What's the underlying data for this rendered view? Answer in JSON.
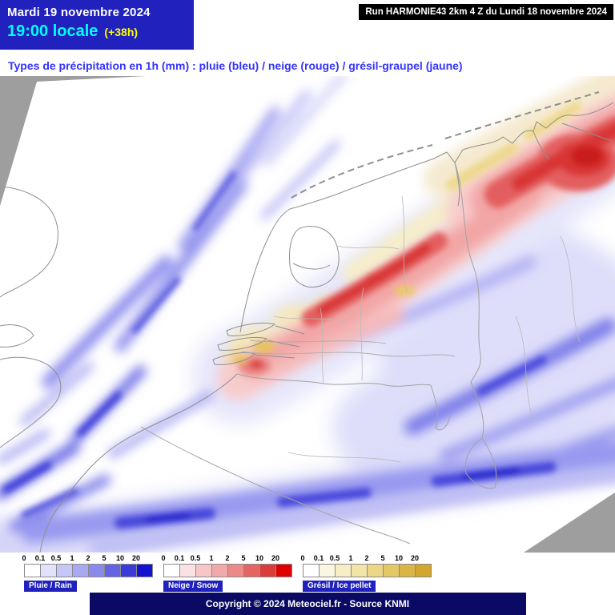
{
  "header": {
    "date": "Mardi 19 novembre 2024",
    "time": "19:00 locale",
    "offset": "(+38h)",
    "run_info": "Run HARMONIE43 2km 4 Z du Lundi 18 novembre 2024"
  },
  "title": {
    "text": "Types de précipitation en 1h (mm) : pluie (bleu) / neige (rouge) / grésil-graupel (jaune)"
  },
  "legends": [
    {
      "id": "rain",
      "label": "Pluie / Rain",
      "ticks": [
        "0",
        "0.1",
        "0.5",
        "1",
        "2",
        "5",
        "10",
        "20"
      ],
      "colors": [
        "#ffffff",
        "#e2e2fb",
        "#c6c6f7",
        "#a9a9f2",
        "#8a8aec",
        "#6363e4",
        "#3b3bda",
        "#1212cf"
      ]
    },
    {
      "id": "snow",
      "label": "Neige / Snow",
      "ticks": [
        "0",
        "0.1",
        "0.5",
        "1",
        "2",
        "5",
        "10",
        "20"
      ],
      "colors": [
        "#ffffff",
        "#fbe2e2",
        "#f7c6c6",
        "#f2a9a9",
        "#ec8a8a",
        "#e46363",
        "#da3b3b",
        "#e00000"
      ]
    },
    {
      "id": "graupel",
      "label": "Grésil / Ice pellet",
      "ticks": [
        "0",
        "0.1",
        "0.5",
        "1",
        "2",
        "5",
        "10",
        "20"
      ],
      "colors": [
        "#ffffff",
        "#fbf6e0",
        "#f7eec4",
        "#f2e3a6",
        "#ecd687",
        "#e4c766",
        "#dab545",
        "#d2a72e"
      ]
    }
  ],
  "footer": {
    "copyright": "Copyright © 2024 Meteociel.fr - Source KNMI"
  },
  "colors": {
    "header_blue": "#2121bd",
    "title_blue": "#3434ff",
    "footer_blue": "#0a0a64",
    "outside_domain_gray": "#9e9e9e"
  }
}
